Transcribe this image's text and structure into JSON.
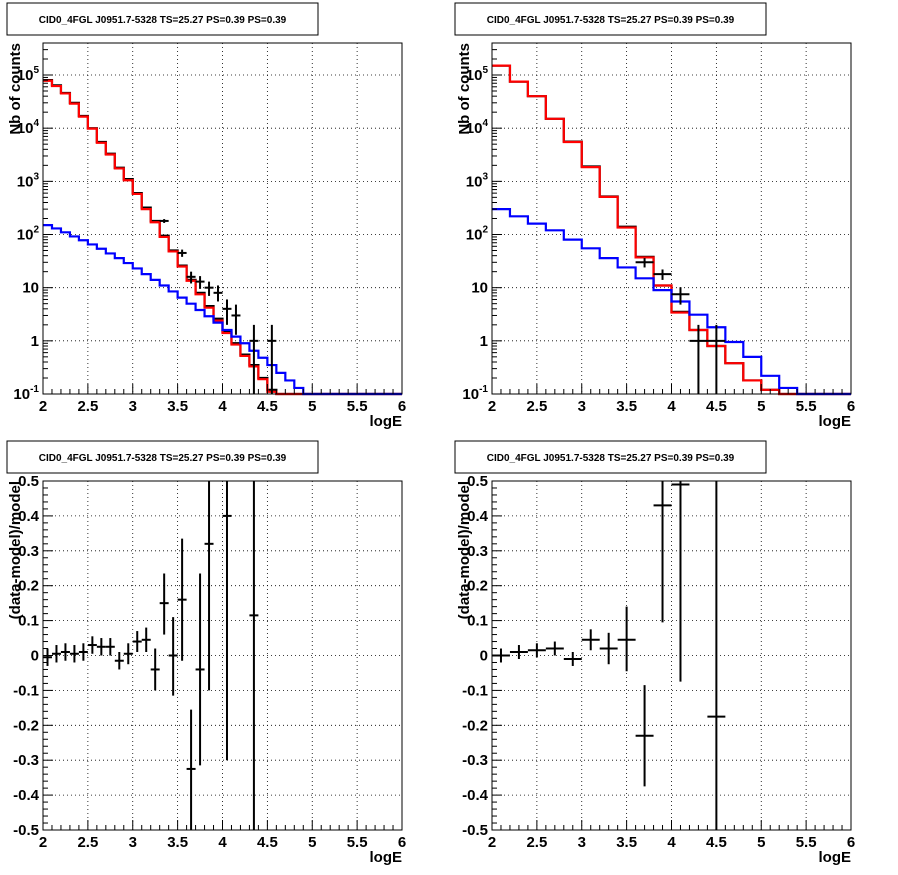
{
  "chart_data": [
    {
      "type": "histogram",
      "title": "CID0_4FGL J0951.7-5328 TS=25.27 PS=0.39 PS=0.39",
      "xlabel": "logE",
      "ylabel": "Nb of counts",
      "yscale": "log",
      "xlim": [
        2,
        6
      ],
      "ylim": [
        0.1,
        400000
      ],
      "xticks": [
        "2",
        "2.5",
        "3",
        "3.5",
        "4",
        "4.5",
        "5",
        "5.5",
        "6"
      ],
      "yticks": [
        "10^-1",
        "1",
        "10",
        "10^2",
        "10^3",
        "10^4",
        "10^5"
      ],
      "grid": true,
      "bin_edges": [
        2.0,
        2.1,
        2.2,
        2.3,
        2.4,
        2.5,
        2.6,
        2.7,
        2.8,
        2.9,
        3.0,
        3.1,
        3.2,
        3.3,
        3.4,
        3.5,
        3.6,
        3.7,
        3.8,
        3.9,
        4.0,
        4.1,
        4.2,
        4.3,
        4.4,
        4.5,
        4.6,
        4.7,
        4.8,
        4.9,
        5.0,
        5.1,
        5.2,
        5.3,
        5.4,
        5.5,
        5.6,
        5.7,
        5.8,
        5.9,
        6.0
      ],
      "series": [
        {
          "name": "",
          "color": "#000000",
          "style": "step",
          "values": [
            80000,
            64000,
            46000,
            30000,
            17000,
            10000,
            5500,
            3300,
            1800,
            1100,
            600,
            320,
            180,
            95,
            50,
            26,
            14,
            8,
            4.5,
            2.6,
            1.5,
            0.9,
            0.55,
            0.35,
            0.2,
            0.12,
            0.1,
            0.1,
            0.1,
            0.1,
            0.1,
            0.1,
            0.1,
            0.1,
            0.1,
            0.1,
            0.1,
            0.1,
            0.1,
            0.1
          ]
        },
        {
          "name": "",
          "color": "#ff0000",
          "style": "step",
          "values": [
            78000,
            62000,
            45000,
            29000,
            16500,
            9800,
            5300,
            3200,
            1750,
            1050,
            580,
            300,
            170,
            90,
            48,
            25,
            13.5,
            7.5,
            4.2,
            2.4,
            1.4,
            0.85,
            0.52,
            0.33,
            0.19,
            0.11,
            0.1,
            0.1,
            0.1,
            0.1,
            0.1,
            0.1,
            0.1,
            0.1,
            0.1,
            0.1,
            0.1,
            0.1,
            0.1,
            0.1
          ]
        },
        {
          "name": "",
          "color": "#0000ff",
          "style": "step",
          "values": [
            150,
            130,
            110,
            92,
            78,
            65,
            54,
            44,
            36,
            29,
            23,
            18,
            14,
            11,
            8.5,
            6.5,
            5,
            3.8,
            2.9,
            2.2,
            1.6,
            1.2,
            0.9,
            0.65,
            0.48,
            0.35,
            0.25,
            0.18,
            0.13,
            0.1,
            0.1,
            0.1,
            0.1,
            0.1,
            0.1,
            0.1,
            0.1,
            0.1,
            0.1,
            0.1
          ]
        }
      ],
      "data_points": [
        {
          "x": 3.35,
          "y": 180,
          "xerr": 0.05,
          "ylo": 165,
          "yhi": 195
        },
        {
          "x": 3.55,
          "y": 45,
          "xerr": 0.05,
          "ylo": 38,
          "yhi": 52
        },
        {
          "x": 3.65,
          "y": 16,
          "xerr": 0.05,
          "ylo": 12,
          "yhi": 20
        },
        {
          "x": 3.75,
          "y": 13,
          "xerr": 0.05,
          "ylo": 9.5,
          "yhi": 16.5
        },
        {
          "x": 3.85,
          "y": 10,
          "xerr": 0.05,
          "ylo": 7,
          "yhi": 13
        },
        {
          "x": 3.95,
          "y": 8,
          "xerr": 0.05,
          "ylo": 5.5,
          "yhi": 11
        },
        {
          "x": 4.05,
          "y": 4,
          "xerr": 0.05,
          "ylo": 2,
          "yhi": 6
        },
        {
          "x": 4.15,
          "y": 3,
          "xerr": 0.05,
          "ylo": 1.3,
          "yhi": 4.8
        },
        {
          "x": 4.35,
          "y": 1,
          "xerr": 0.05,
          "ylo": 0.1,
          "yhi": 2
        },
        {
          "x": 4.55,
          "y": 1,
          "xerr": 0.05,
          "ylo": 0.1,
          "yhi": 2
        }
      ]
    },
    {
      "type": "histogram",
      "title": "CID0_4FGL J0951.7-5328 TS=25.27 PS=0.39 PS=0.39",
      "xlabel": "logE",
      "ylabel": "Nb of counts",
      "yscale": "log",
      "xlim": [
        2,
        6
      ],
      "ylim": [
        0.1,
        400000
      ],
      "xticks": [
        "2",
        "2.5",
        "3",
        "3.5",
        "4",
        "4.5",
        "5",
        "5.5",
        "6"
      ],
      "yticks": [
        "10^-1",
        "1",
        "10",
        "10^2",
        "10^3",
        "10^4",
        "10^5"
      ],
      "grid": true,
      "bin_edges": [
        2.0,
        2.2,
        2.4,
        2.6,
        2.8,
        3.0,
        3.2,
        3.4,
        3.6,
        3.8,
        4.0,
        4.2,
        4.4,
        4.6,
        4.8,
        5.0,
        5.2,
        5.4,
        5.6,
        5.8,
        6.0
      ],
      "series": [
        {
          "name": "",
          "color": "#000000",
          "style": "step",
          "values": [
            150000,
            75000,
            40000,
            15000,
            5600,
            1900,
            520,
            140,
            38,
            11,
            3.5,
            1.6,
            0.8,
            0.38,
            0.18,
            0.12,
            0.1,
            0.1,
            0.1,
            0.1
          ]
        },
        {
          "name": "",
          "color": "#ff0000",
          "style": "step",
          "values": [
            150000,
            75000,
            40000,
            15000,
            5500,
            1850,
            510,
            135,
            37,
            11,
            3.4,
            1.6,
            0.8,
            0.38,
            0.18,
            0.12,
            0.1,
            0.1,
            0.1,
            0.1
          ]
        },
        {
          "name": "",
          "color": "#0000ff",
          "style": "step",
          "values": [
            300,
            220,
            160,
            120,
            80,
            55,
            36,
            24,
            15,
            9,
            5.5,
            3.1,
            1.8,
            0.95,
            0.5,
            0.22,
            0.13,
            0.1,
            0.1,
            0.1
          ]
        }
      ],
      "data_points": [
        {
          "x": 3.7,
          "y": 30,
          "xerr": 0.1,
          "ylo": 24,
          "yhi": 36
        },
        {
          "x": 3.9,
          "y": 18,
          "xerr": 0.1,
          "ylo": 14,
          "yhi": 22
        },
        {
          "x": 4.1,
          "y": 7.5,
          "xerr": 0.1,
          "ylo": 4.8,
          "yhi": 10.2
        },
        {
          "x": 4.3,
          "y": 1,
          "xerr": 0.1,
          "ylo": 0.1,
          "yhi": 2
        },
        {
          "x": 4.5,
          "y": 1,
          "xerr": 0.1,
          "ylo": 0.1,
          "yhi": 2
        }
      ]
    },
    {
      "type": "scatter",
      "title": "CID0_4FGL J0951.7-5328 TS=25.27 PS=0.39 PS=0.39",
      "xlabel": "logE",
      "ylabel": "(data-model)/model",
      "yscale": "linear",
      "xlim": [
        2,
        6
      ],
      "ylim": [
        -0.5,
        0.5
      ],
      "xticks": [
        "2",
        "2.5",
        "3",
        "3.5",
        "4",
        "4.5",
        "5",
        "5.5",
        "6"
      ],
      "yticks": [
        "-0.5",
        "-0.4",
        "-0.3",
        "-0.2",
        "-0.1",
        "0",
        "0.1",
        "0.2",
        "0.3",
        "0.4",
        "0.5"
      ],
      "grid": true,
      "data_points": [
        {
          "x": 2.05,
          "y": -0.005,
          "xerr": 0.05,
          "ylo": -0.03,
          "yhi": 0.02
        },
        {
          "x": 2.15,
          "y": 0.005,
          "xerr": 0.05,
          "ylo": -0.02,
          "yhi": 0.03
        },
        {
          "x": 2.25,
          "y": 0.01,
          "xerr": 0.05,
          "ylo": -0.015,
          "yhi": 0.035
        },
        {
          "x": 2.35,
          "y": 0.005,
          "xerr": 0.05,
          "ylo": -0.02,
          "yhi": 0.03
        },
        {
          "x": 2.45,
          "y": 0.01,
          "xerr": 0.05,
          "ylo": -0.015,
          "yhi": 0.035
        },
        {
          "x": 2.55,
          "y": 0.03,
          "xerr": 0.05,
          "ylo": 0.005,
          "yhi": 0.055
        },
        {
          "x": 2.65,
          "y": 0.025,
          "xerr": 0.05,
          "ylo": 0.0,
          "yhi": 0.05
        },
        {
          "x": 2.75,
          "y": 0.025,
          "xerr": 0.05,
          "ylo": 0.0,
          "yhi": 0.05
        },
        {
          "x": 2.85,
          "y": -0.015,
          "xerr": 0.05,
          "ylo": -0.04,
          "yhi": 0.01
        },
        {
          "x": 2.95,
          "y": 0.005,
          "xerr": 0.05,
          "ylo": -0.025,
          "yhi": 0.035
        },
        {
          "x": 3.05,
          "y": 0.04,
          "xerr": 0.05,
          "ylo": 0.01,
          "yhi": 0.07
        },
        {
          "x": 3.15,
          "y": 0.045,
          "xerr": 0.05,
          "ylo": 0.01,
          "yhi": 0.08
        },
        {
          "x": 3.25,
          "y": -0.04,
          "xerr": 0.05,
          "ylo": -0.1,
          "yhi": 0.02
        },
        {
          "x": 3.35,
          "y": 0.15,
          "xerr": 0.05,
          "ylo": 0.06,
          "yhi": 0.235
        },
        {
          "x": 3.45,
          "y": 0.0,
          "xerr": 0.05,
          "ylo": -0.115,
          "yhi": 0.11
        },
        {
          "x": 3.55,
          "y": 0.16,
          "xerr": 0.05,
          "ylo": -0.015,
          "yhi": 0.335
        },
        {
          "x": 3.65,
          "y": -0.325,
          "xerr": 0.05,
          "ylo": -0.5,
          "yhi": -0.155
        },
        {
          "x": 3.75,
          "y": -0.04,
          "xerr": 0.05,
          "ylo": -0.315,
          "yhi": 0.235
        },
        {
          "x": 3.85,
          "y": 0.32,
          "xerr": 0.05,
          "ylo": -0.1,
          "yhi": 0.5
        },
        {
          "x": 4.05,
          "y": 0.4,
          "xerr": 0.05,
          "ylo": -0.3,
          "yhi": 0.5
        },
        {
          "x": 4.35,
          "y": 0.115,
          "xerr": 0.05,
          "ylo": -0.5,
          "yhi": 0.5
        }
      ]
    },
    {
      "type": "scatter",
      "title": "CID0_4FGL J0951.7-5328 TS=25.27 PS=0.39 PS=0.39",
      "xlabel": "logE",
      "ylabel": "(data-model)/model",
      "yscale": "linear",
      "xlim": [
        2,
        6
      ],
      "ylim": [
        -0.5,
        0.5
      ],
      "xticks": [
        "2",
        "2.5",
        "3",
        "3.5",
        "4",
        "4.5",
        "5",
        "5.5",
        "6"
      ],
      "yticks": [
        "-0.5",
        "-0.4",
        "-0.3",
        "-0.2",
        "-0.1",
        "0",
        "0.1",
        "0.2",
        "0.3",
        "0.4",
        "0.5"
      ],
      "grid": true,
      "data_points": [
        {
          "x": 2.1,
          "y": 0.0,
          "xerr": 0.1,
          "ylo": -0.02,
          "yhi": 0.02
        },
        {
          "x": 2.3,
          "y": 0.01,
          "xerr": 0.1,
          "ylo": -0.01,
          "yhi": 0.03
        },
        {
          "x": 2.5,
          "y": 0.015,
          "xerr": 0.1,
          "ylo": -0.005,
          "yhi": 0.035
        },
        {
          "x": 2.7,
          "y": 0.02,
          "xerr": 0.1,
          "ylo": 0.0,
          "yhi": 0.04
        },
        {
          "x": 2.9,
          "y": -0.01,
          "xerr": 0.1,
          "ylo": -0.03,
          "yhi": 0.01
        },
        {
          "x": 3.1,
          "y": 0.045,
          "xerr": 0.1,
          "ylo": 0.015,
          "yhi": 0.075
        },
        {
          "x": 3.3,
          "y": 0.02,
          "xerr": 0.1,
          "ylo": -0.025,
          "yhi": 0.065
        },
        {
          "x": 3.5,
          "y": 0.045,
          "xerr": 0.1,
          "ylo": -0.045,
          "yhi": 0.14
        },
        {
          "x": 3.7,
          "y": -0.23,
          "xerr": 0.1,
          "ylo": -0.375,
          "yhi": -0.085
        },
        {
          "x": 3.9,
          "y": 0.43,
          "xerr": 0.1,
          "ylo": 0.095,
          "yhi": 0.5
        },
        {
          "x": 4.1,
          "y": 0.49,
          "xerr": 0.1,
          "ylo": -0.075,
          "yhi": 0.5
        },
        {
          "x": 4.5,
          "y": -0.175,
          "xerr": 0.1,
          "ylo": -0.5,
          "yhi": 0.5
        }
      ]
    }
  ]
}
